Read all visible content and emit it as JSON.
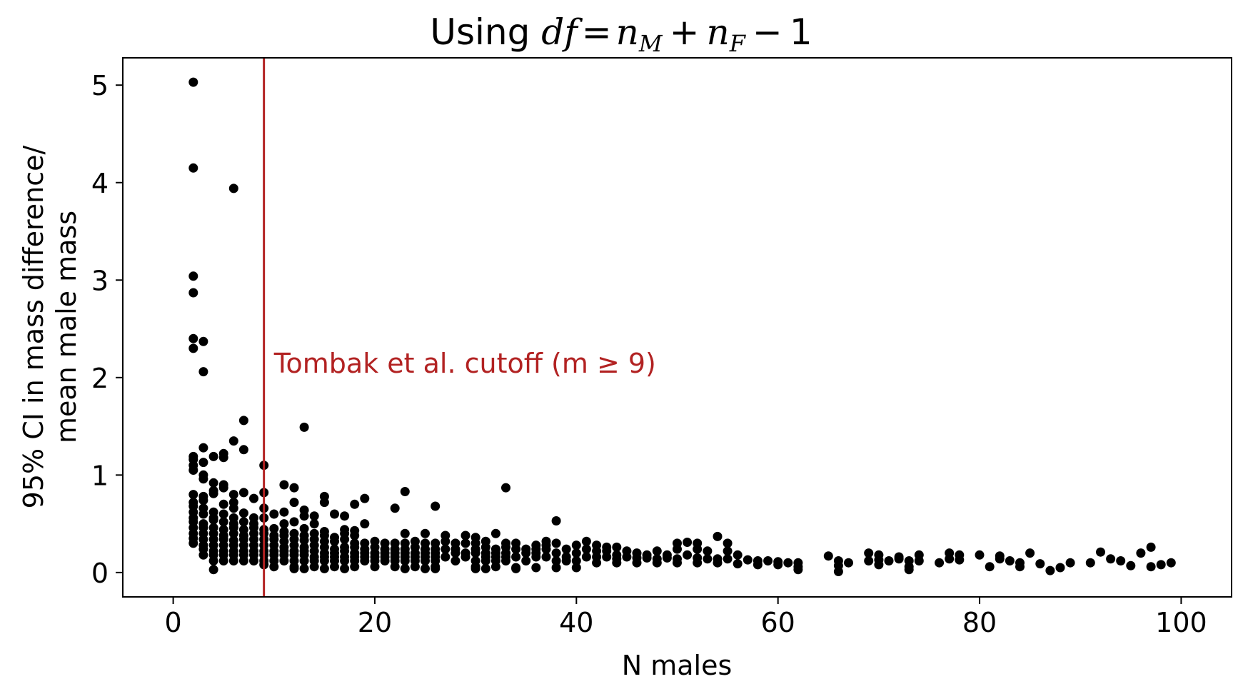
{
  "chart_data": {
    "type": "scatter",
    "title": {
      "prefix": "Using ",
      "formula": "df = n_M + n_F − 1",
      "main": "df",
      "eq": "=",
      "var1": "n",
      "sub1": "M",
      "plus": "+",
      "var2": "n",
      "sub2": "F",
      "minus": "−",
      "const": "1"
    },
    "xlabel": "N males",
    "ylabel_lines": [
      "95% CI in mass difference/",
      "mean male mass"
    ],
    "xlim": [
      -5,
      105
    ],
    "ylim": [
      -0.25,
      5.28
    ],
    "xticks": [
      0,
      20,
      40,
      60,
      80,
      100
    ],
    "yticks": [
      0,
      1,
      2,
      3,
      4,
      5
    ],
    "grid": false,
    "point_color": "#000000",
    "cutoff": {
      "x": 9,
      "color": "#b22222",
      "label": "Tombak et al. cutoff (m ≥ 9)",
      "label_x": 10,
      "label_y": 2.05
    },
    "points": [
      [
        2,
        5.03
      ],
      [
        2,
        4.15
      ],
      [
        6,
        3.94
      ],
      [
        2,
        3.04
      ],
      [
        2,
        2.87
      ],
      [
        2,
        2.4
      ],
      [
        3,
        2.37
      ],
      [
        2,
        2.3
      ],
      [
        3,
        2.06
      ],
      [
        7,
        1.56
      ],
      [
        13,
        1.49
      ],
      [
        6,
        1.35
      ],
      [
        3,
        1.28
      ],
      [
        7,
        1.26
      ],
      [
        5,
        1.22
      ],
      [
        2,
        1.19
      ],
      [
        4,
        1.19
      ],
      [
        2,
        1.16
      ],
      [
        3,
        1.13
      ],
      [
        2,
        1.1
      ],
      [
        9,
        1.1
      ],
      [
        2,
        1.05
      ],
      [
        3,
        1.0
      ],
      [
        5,
        1.18
      ],
      [
        3,
        0.96
      ],
      [
        4,
        0.92
      ],
      [
        5,
        0.9
      ],
      [
        5,
        0.87
      ],
      [
        11,
        0.9
      ],
      [
        12,
        0.87
      ],
      [
        4,
        0.84
      ],
      [
        4,
        0.81
      ],
      [
        2,
        0.8
      ],
      [
        3,
        0.78
      ],
      [
        6,
        0.8
      ],
      [
        7,
        0.82
      ],
      [
        8,
        0.76
      ],
      [
        9,
        0.82
      ],
      [
        15,
        0.78
      ],
      [
        19,
        0.76
      ],
      [
        2,
        0.72
      ],
      [
        3,
        0.74
      ],
      [
        5,
        0.7
      ],
      [
        6,
        0.72
      ],
      [
        12,
        0.72
      ],
      [
        15,
        0.72
      ],
      [
        18,
        0.7
      ],
      [
        2,
        0.68
      ],
      [
        3,
        0.66
      ],
      [
        6,
        0.66
      ],
      [
        9,
        0.66
      ],
      [
        11,
        0.62
      ],
      [
        13,
        0.64
      ],
      [
        22,
        0.66
      ],
      [
        23,
        0.83
      ],
      [
        26,
        0.68
      ],
      [
        33,
        0.87
      ],
      [
        2,
        0.62
      ],
      [
        3,
        0.6
      ],
      [
        4,
        0.62
      ],
      [
        5,
        0.6
      ],
      [
        7,
        0.61
      ],
      [
        10,
        0.6
      ],
      [
        14,
        0.58
      ],
      [
        16,
        0.6
      ],
      [
        17,
        0.58
      ],
      [
        2,
        0.56
      ],
      [
        4,
        0.56
      ],
      [
        6,
        0.56
      ],
      [
        8,
        0.56
      ],
      [
        9,
        0.56
      ],
      [
        13,
        0.58
      ],
      [
        2,
        0.52
      ],
      [
        3,
        0.5
      ],
      [
        4,
        0.54
      ],
      [
        5,
        0.52
      ],
      [
        6,
        0.5
      ],
      [
        7,
        0.52
      ],
      [
        8,
        0.5
      ],
      [
        11,
        0.5
      ],
      [
        12,
        0.52
      ],
      [
        14,
        0.5
      ],
      [
        19,
        0.5
      ],
      [
        38,
        0.53
      ],
      [
        2,
        0.46
      ],
      [
        3,
        0.46
      ],
      [
        4,
        0.46
      ],
      [
        5,
        0.44
      ],
      [
        6,
        0.46
      ],
      [
        7,
        0.44
      ],
      [
        8,
        0.46
      ],
      [
        9,
        0.44
      ],
      [
        10,
        0.45
      ],
      [
        11,
        0.42
      ],
      [
        13,
        0.45
      ],
      [
        15,
        0.42
      ],
      [
        17,
        0.44
      ],
      [
        18,
        0.43
      ],
      [
        2,
        0.4
      ],
      [
        3,
        0.4
      ],
      [
        4,
        0.4
      ],
      [
        5,
        0.38
      ],
      [
        6,
        0.4
      ],
      [
        7,
        0.38
      ],
      [
        8,
        0.4
      ],
      [
        9,
        0.4
      ],
      [
        10,
        0.38
      ],
      [
        11,
        0.38
      ],
      [
        12,
        0.4
      ],
      [
        13,
        0.38
      ],
      [
        14,
        0.4
      ],
      [
        15,
        0.38
      ],
      [
        16,
        0.36
      ],
      [
        17,
        0.4
      ],
      [
        18,
        0.38
      ],
      [
        23,
        0.4
      ],
      [
        25,
        0.4
      ],
      [
        27,
        0.38
      ],
      [
        29,
        0.38
      ],
      [
        30,
        0.36
      ],
      [
        32,
        0.4
      ],
      [
        37,
        0.32
      ],
      [
        41,
        0.32
      ],
      [
        51,
        0.31
      ],
      [
        52,
        0.3
      ],
      [
        54,
        0.37
      ],
      [
        55,
        0.3
      ],
      [
        2,
        0.35
      ],
      [
        3,
        0.34
      ],
      [
        4,
        0.34
      ],
      [
        5,
        0.34
      ],
      [
        6,
        0.33
      ],
      [
        7,
        0.34
      ],
      [
        8,
        0.34
      ],
      [
        9,
        0.34
      ],
      [
        10,
        0.34
      ],
      [
        11,
        0.32
      ],
      [
        12,
        0.34
      ],
      [
        13,
        0.33
      ],
      [
        14,
        0.34
      ],
      [
        15,
        0.32
      ],
      [
        16,
        0.32
      ],
      [
        17,
        0.34
      ],
      [
        18,
        0.3
      ],
      [
        19,
        0.3
      ],
      [
        20,
        0.32
      ],
      [
        21,
        0.3
      ],
      [
        22,
        0.3
      ],
      [
        23,
        0.3
      ],
      [
        24,
        0.32
      ],
      [
        25,
        0.3
      ],
      [
        26,
        0.3
      ],
      [
        27,
        0.32
      ],
      [
        28,
        0.3
      ],
      [
        29,
        0.3
      ],
      [
        30,
        0.3
      ],
      [
        31,
        0.32
      ],
      [
        33,
        0.3
      ],
      [
        34,
        0.3
      ],
      [
        36,
        0.28
      ],
      [
        37,
        0.28
      ],
      [
        38,
        0.3
      ],
      [
        40,
        0.28
      ],
      [
        42,
        0.28
      ],
      [
        43,
        0.26
      ],
      [
        44,
        0.26
      ],
      [
        50,
        0.3
      ],
      [
        2,
        0.3
      ],
      [
        3,
        0.28
      ],
      [
        4,
        0.28
      ],
      [
        5,
        0.28
      ],
      [
        6,
        0.28
      ],
      [
        7,
        0.28
      ],
      [
        8,
        0.28
      ],
      [
        9,
        0.28
      ],
      [
        10,
        0.28
      ],
      [
        11,
        0.26
      ],
      [
        12,
        0.28
      ],
      [
        13,
        0.26
      ],
      [
        14,
        0.28
      ],
      [
        15,
        0.26
      ],
      [
        16,
        0.24
      ],
      [
        17,
        0.26
      ],
      [
        18,
        0.26
      ],
      [
        19,
        0.24
      ],
      [
        20,
        0.26
      ],
      [
        21,
        0.24
      ],
      [
        22,
        0.24
      ],
      [
        23,
        0.24
      ],
      [
        24,
        0.26
      ],
      [
        25,
        0.24
      ],
      [
        26,
        0.24
      ],
      [
        27,
        0.24
      ],
      [
        28,
        0.24
      ],
      [
        30,
        0.24
      ],
      [
        31,
        0.26
      ],
      [
        32,
        0.24
      ],
      [
        33,
        0.26
      ],
      [
        34,
        0.24
      ],
      [
        35,
        0.24
      ],
      [
        36,
        0.24
      ],
      [
        37,
        0.24
      ],
      [
        39,
        0.24
      ],
      [
        41,
        0.24
      ],
      [
        42,
        0.22
      ],
      [
        43,
        0.22
      ],
      [
        45,
        0.22
      ],
      [
        46,
        0.2
      ],
      [
        48,
        0.22
      ],
      [
        50,
        0.24
      ],
      [
        52,
        0.24
      ],
      [
        53,
        0.22
      ],
      [
        55,
        0.22
      ],
      [
        3,
        0.24
      ],
      [
        4,
        0.22
      ],
      [
        5,
        0.22
      ],
      [
        6,
        0.22
      ],
      [
        7,
        0.22
      ],
      [
        8,
        0.22
      ],
      [
        9,
        0.22
      ],
      [
        10,
        0.22
      ],
      [
        11,
        0.22
      ],
      [
        12,
        0.22
      ],
      [
        13,
        0.22
      ],
      [
        14,
        0.22
      ],
      [
        15,
        0.2
      ],
      [
        16,
        0.2
      ],
      [
        17,
        0.22
      ],
      [
        18,
        0.2
      ],
      [
        19,
        0.2
      ],
      [
        20,
        0.2
      ],
      [
        21,
        0.2
      ],
      [
        22,
        0.2
      ],
      [
        23,
        0.2
      ],
      [
        24,
        0.2
      ],
      [
        25,
        0.2
      ],
      [
        26,
        0.2
      ],
      [
        28,
        0.2
      ],
      [
        29,
        0.2
      ],
      [
        30,
        0.2
      ],
      [
        31,
        0.2
      ],
      [
        32,
        0.2
      ],
      [
        33,
        0.2
      ],
      [
        35,
        0.2
      ],
      [
        36,
        0.2
      ],
      [
        38,
        0.2
      ],
      [
        40,
        0.2
      ],
      [
        44,
        0.18
      ],
      [
        47,
        0.18
      ],
      [
        49,
        0.18
      ],
      [
        51,
        0.18
      ],
      [
        56,
        0.18
      ],
      [
        65,
        0.17
      ],
      [
        69,
        0.2
      ],
      [
        70,
        0.18
      ],
      [
        72,
        0.16
      ],
      [
        74,
        0.18
      ],
      [
        77,
        0.2
      ],
      [
        78,
        0.18
      ],
      [
        80,
        0.18
      ],
      [
        82,
        0.17
      ],
      [
        85,
        0.2
      ],
      [
        92,
        0.21
      ],
      [
        96,
        0.2
      ],
      [
        97,
        0.26
      ],
      [
        3,
        0.18
      ],
      [
        4,
        0.18
      ],
      [
        5,
        0.18
      ],
      [
        6,
        0.18
      ],
      [
        7,
        0.18
      ],
      [
        8,
        0.18
      ],
      [
        9,
        0.18
      ],
      [
        10,
        0.18
      ],
      [
        11,
        0.18
      ],
      [
        12,
        0.18
      ],
      [
        13,
        0.18
      ],
      [
        14,
        0.16
      ],
      [
        15,
        0.16
      ],
      [
        16,
        0.16
      ],
      [
        17,
        0.16
      ],
      [
        18,
        0.16
      ],
      [
        19,
        0.16
      ],
      [
        20,
        0.16
      ],
      [
        21,
        0.16
      ],
      [
        22,
        0.16
      ],
      [
        23,
        0.16
      ],
      [
        24,
        0.16
      ],
      [
        25,
        0.16
      ],
      [
        26,
        0.16
      ],
      [
        27,
        0.16
      ],
      [
        29,
        0.16
      ],
      [
        31,
        0.16
      ],
      [
        32,
        0.16
      ],
      [
        33,
        0.16
      ],
      [
        34,
        0.16
      ],
      [
        36,
        0.16
      ],
      [
        37,
        0.16
      ],
      [
        39,
        0.16
      ],
      [
        41,
        0.16
      ],
      [
        42,
        0.16
      ],
      [
        43,
        0.16
      ],
      [
        44,
        0.14
      ],
      [
        45,
        0.16
      ],
      [
        46,
        0.15
      ],
      [
        47,
        0.15
      ],
      [
        48,
        0.14
      ],
      [
        49,
        0.15
      ],
      [
        50,
        0.14
      ],
      [
        52,
        0.15
      ],
      [
        53,
        0.14
      ],
      [
        54,
        0.14
      ],
      [
        55,
        0.14
      ],
      [
        57,
        0.13
      ],
      [
        58,
        0.12
      ],
      [
        59,
        0.12
      ],
      [
        60,
        0.11
      ],
      [
        61,
        0.1
      ],
      [
        62,
        0.1
      ],
      [
        66,
        0.12
      ],
      [
        67,
        0.1
      ],
      [
        69,
        0.12
      ],
      [
        70,
        0.13
      ],
      [
        71,
        0.12
      ],
      [
        72,
        0.14
      ],
      [
        73,
        0.12
      ],
      [
        74,
        0.12
      ],
      [
        76,
        0.1
      ],
      [
        77,
        0.14
      ],
      [
        78,
        0.13
      ],
      [
        82,
        0.14
      ],
      [
        83,
        0.12
      ],
      [
        84,
        0.1
      ],
      [
        86,
        0.09
      ],
      [
        89,
        0.1
      ],
      [
        91,
        0.1
      ],
      [
        93,
        0.14
      ],
      [
        94,
        0.12
      ],
      [
        98,
        0.08
      ],
      [
        99,
        0.1
      ],
      [
        4,
        0.12
      ],
      [
        5,
        0.12
      ],
      [
        6,
        0.12
      ],
      [
        7,
        0.12
      ],
      [
        8,
        0.12
      ],
      [
        9,
        0.12
      ],
      [
        10,
        0.12
      ],
      [
        11,
        0.12
      ],
      [
        12,
        0.12
      ],
      [
        13,
        0.12
      ],
      [
        14,
        0.12
      ],
      [
        15,
        0.12
      ],
      [
        16,
        0.12
      ],
      [
        17,
        0.12
      ],
      [
        18,
        0.12
      ],
      [
        19,
        0.12
      ],
      [
        20,
        0.12
      ],
      [
        21,
        0.12
      ],
      [
        22,
        0.12
      ],
      [
        23,
        0.12
      ],
      [
        24,
        0.12
      ],
      [
        25,
        0.12
      ],
      [
        26,
        0.12
      ],
      [
        28,
        0.12
      ],
      [
        30,
        0.12
      ],
      [
        31,
        0.12
      ],
      [
        32,
        0.12
      ],
      [
        33,
        0.12
      ],
      [
        35,
        0.12
      ],
      [
        38,
        0.12
      ],
      [
        39,
        0.12
      ],
      [
        40,
        0.12
      ],
      [
        42,
        0.1
      ],
      [
        44,
        0.1
      ],
      [
        46,
        0.1
      ],
      [
        48,
        0.1
      ],
      [
        50,
        0.1
      ],
      [
        52,
        0.1
      ],
      [
        54,
        0.1
      ],
      [
        56,
        0.09
      ],
      [
        58,
        0.08
      ],
      [
        60,
        0.08
      ],
      [
        62,
        0.06
      ],
      [
        66,
        0.07
      ],
      [
        70,
        0.08
      ],
      [
        73,
        0.06
      ],
      [
        81,
        0.06
      ],
      [
        84,
        0.06
      ],
      [
        88,
        0.05
      ],
      [
        95,
        0.07
      ],
      [
        97,
        0.06
      ],
      [
        9,
        0.08
      ],
      [
        10,
        0.06
      ],
      [
        12,
        0.06
      ],
      [
        14,
        0.06
      ],
      [
        16,
        0.06
      ],
      [
        18,
        0.06
      ],
      [
        20,
        0.06
      ],
      [
        22,
        0.06
      ],
      [
        24,
        0.06
      ],
      [
        26,
        0.06
      ],
      [
        30,
        0.06
      ],
      [
        32,
        0.06
      ],
      [
        34,
        0.05
      ],
      [
        36,
        0.05
      ],
      [
        38,
        0.05
      ],
      [
        40,
        0.05
      ],
      [
        4,
        0.03
      ],
      [
        12,
        0.04
      ],
      [
        13,
        0.04
      ],
      [
        15,
        0.04
      ],
      [
        17,
        0.04
      ],
      [
        23,
        0.04
      ],
      [
        25,
        0.04
      ],
      [
        26,
        0.04
      ],
      [
        30,
        0.04
      ],
      [
        31,
        0.04
      ],
      [
        34,
        0.04
      ],
      [
        62,
        0.03
      ],
      [
        66,
        0.01
      ],
      [
        73,
        0.03
      ],
      [
        87,
        0.02
      ]
    ]
  }
}
